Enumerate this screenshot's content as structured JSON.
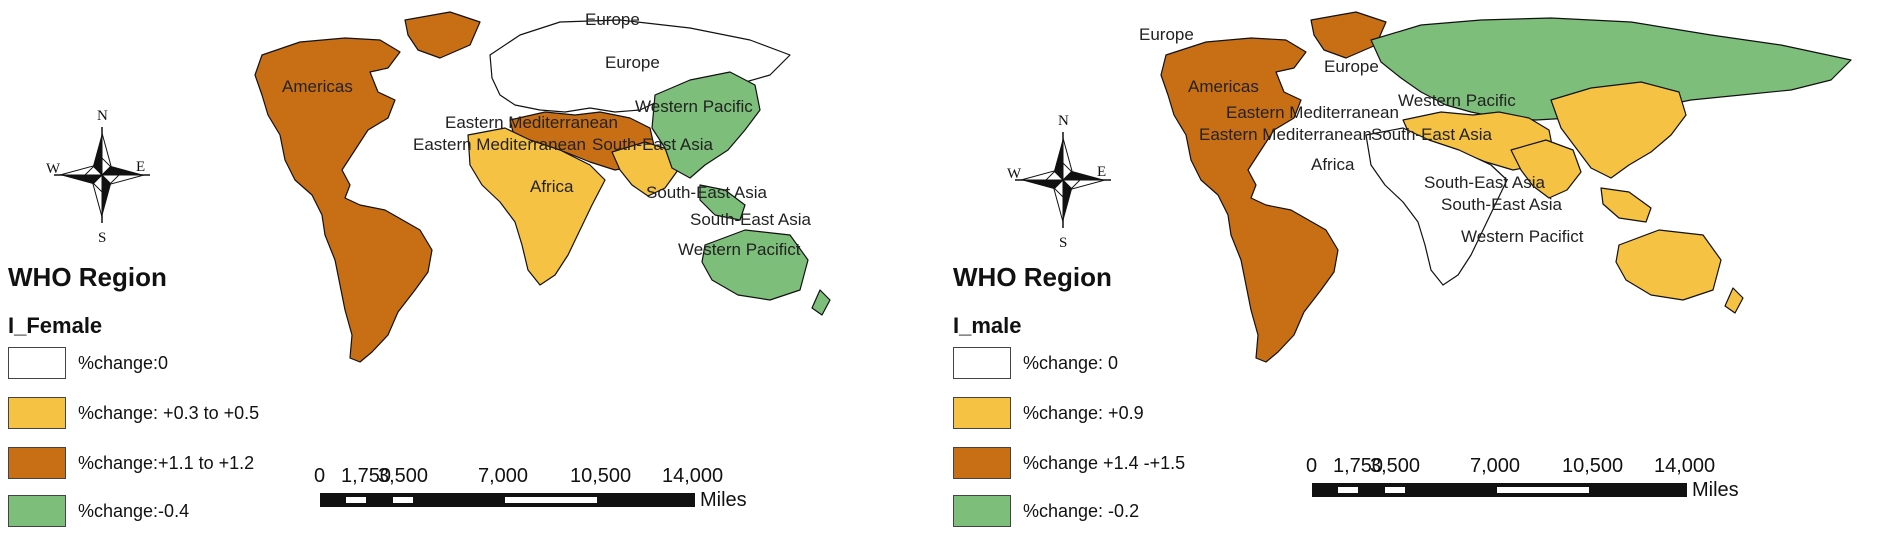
{
  "panels": [
    {
      "legend": {
        "title": "WHO Region",
        "subtitle": "I_Female",
        "items": [
          {
            "label": "%change:0",
            "color": "#ffffff"
          },
          {
            "label": "%change: +0.3 to +0.5",
            "color": "#f6c244"
          },
          {
            "label": "%change:+1.1 to +1.2",
            "color": "#c86f16"
          },
          {
            "label": "%change:-0.4",
            "color": "#7dbf7a"
          }
        ]
      },
      "labels": {
        "europe_north": "Europe",
        "europe": "Europe",
        "americas": "Americas",
        "eastern_med_1": "Eastern Mediterranean",
        "eastern_med_2": "Eastern Mediterranean",
        "south_east_asia_1": "South-East Asia",
        "western_pacific_1": "Western Pacific",
        "africa": "Africa",
        "south_east_asia_2": "South-East Asia",
        "south_east_asia_3": "South-East Asia",
        "western_pacific_2": "Western Pacifict"
      },
      "scale": {
        "ticks": [
          "0",
          "1,750",
          "3,500",
          "7,000",
          "10,500",
          "14,000"
        ],
        "units": "Miles"
      },
      "compass": {
        "n": "N",
        "s": "S",
        "e": "E",
        "w": "W"
      }
    },
    {
      "legend": {
        "title": "WHO Region",
        "subtitle": "I_male",
        "items": [
          {
            "label": "%change: 0",
            "color": "#ffffff"
          },
          {
            "label": "%change: +0.9",
            "color": "#f6c244"
          },
          {
            "label": "%change +1.4 -+1.5",
            "color": "#c86f16"
          },
          {
            "label": "%change: -0.2",
            "color": "#7dbf7a"
          }
        ]
      },
      "labels": {
        "europe_north": "Europe",
        "europe": "Europe",
        "americas": "Americas",
        "eastern_med_1": "Eastern Mediterranean",
        "eastern_med_2": "Eastern Mediterranean",
        "south_east_asia_1": "South-East Asia",
        "western_pacific_1": "Western Pacific",
        "africa": "Africa",
        "south_east_asia_2": "South-East Asia",
        "south_east_asia_3": "South-East Asia",
        "western_pacific_2": "Western Pacifict"
      },
      "scale": {
        "ticks": [
          "0",
          "1,750",
          "3,500",
          "7,000",
          "10,500",
          "14,000"
        ],
        "units": "Miles"
      },
      "compass": {
        "n": "N",
        "s": "S",
        "e": "E",
        "w": "W"
      }
    }
  ],
  "colors": {
    "americas_left": "#c86f16",
    "europe_left": "#ffffff",
    "africa_left": "#f6c244",
    "eastern_med_left": "#c86f16",
    "sea_left": "#f6c244",
    "wp_left": "#7dbf7a",
    "americas_right": "#c86f16",
    "europe_right": "#7dbf7a",
    "africa_right": "#ffffff",
    "eastern_med_right": "#f6c244",
    "sea_right": "#f6c244",
    "wp_right": "#f6c244"
  }
}
